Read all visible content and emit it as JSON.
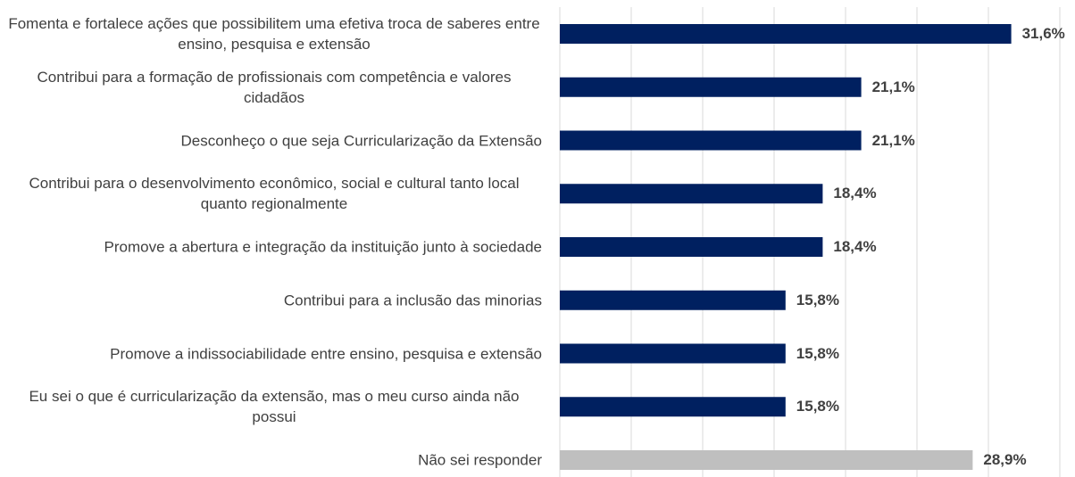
{
  "chart_data": {
    "type": "bar",
    "orientation": "horizontal",
    "categories": [
      "Fomenta e fortalece ações que possibilitem uma efetiva troca de saberes entre ensino, pesquisa e extensão",
      "Contribui para a formação de profissionais com competência e valores cidadãos",
      "Desconheço o que seja Curricularização da Extensão",
      "Contribui para o desenvolvimento econômico, social e cultural tanto local quanto regionalmente",
      "Promove a abertura e integração da instituição junto à sociedade",
      "Contribui para a inclusão das minorias",
      "Promove a indissociabilidade entre ensino, pesquisa e extensão",
      "Eu sei o que é curricularização da extensão, mas o meu curso ainda não possui",
      "Não sei responder"
    ],
    "values": [
      31.6,
      21.1,
      21.1,
      18.4,
      18.4,
      15.8,
      15.8,
      15.8,
      28.9
    ],
    "value_labels": [
      "31,6%",
      "21,1%",
      "21,1%",
      "18,4%",
      "18,4%",
      "15,8%",
      "15,8%",
      "15,8%",
      "28,9%"
    ],
    "colors": [
      "#002060",
      "#002060",
      "#002060",
      "#002060",
      "#002060",
      "#002060",
      "#002060",
      "#002060",
      "#bfbfbf"
    ],
    "xlim": [
      0,
      35
    ],
    "xticks": [
      0,
      5,
      10,
      15,
      20,
      25,
      30,
      35
    ],
    "grid": true
  }
}
